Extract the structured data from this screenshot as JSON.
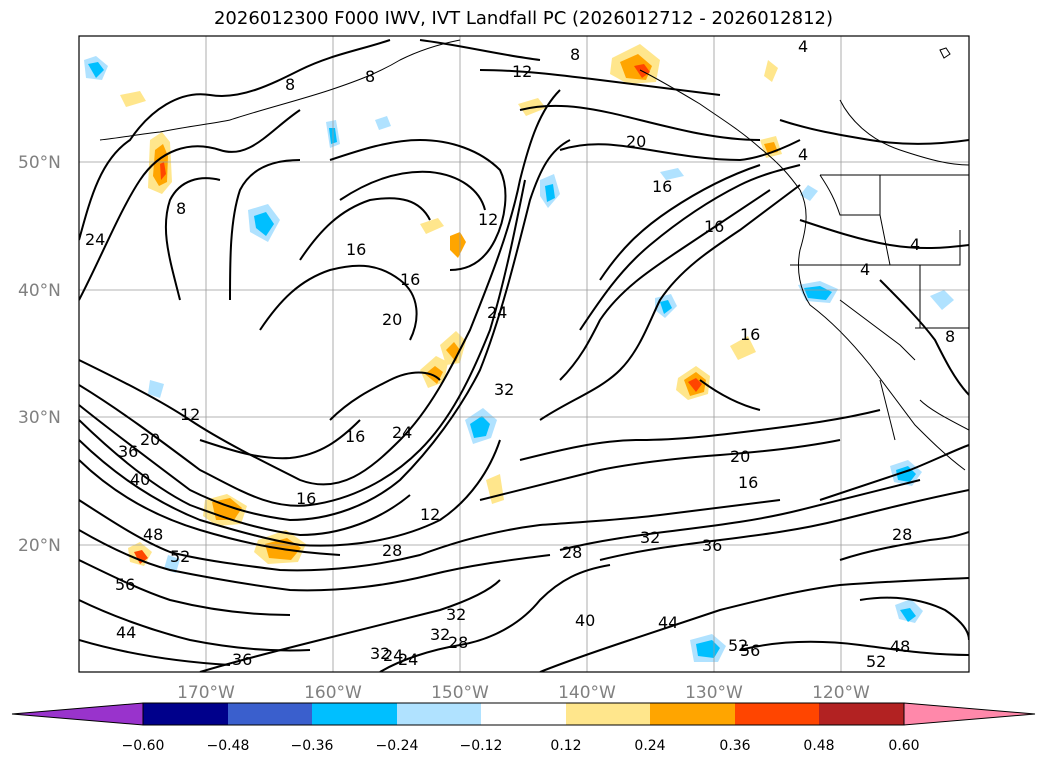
{
  "title": "2026012300 F000 IWV, IVT Landfall PC (2026012712 - 2026012812)",
  "lat_labels": [
    "50°N",
    "40°N",
    "30°N",
    "20°N"
  ],
  "lon_labels": [
    "170°W",
    "160°W",
    "150°W",
    "140°W",
    "130°W",
    "120°W"
  ],
  "colorbar": {
    "ticks": [
      "−0.60",
      "−0.48",
      "−0.36",
      "−0.24",
      "−0.12",
      "0.12",
      "0.24",
      "0.36",
      "0.48",
      "0.60"
    ],
    "colors": [
      "#9933cc",
      "#00008b",
      "#3a5fcd",
      "#00bfff",
      "#b0e2ff",
      "#ffffff",
      "#ffe68c",
      "#ffa500",
      "#ff4500",
      "#b22222",
      "#ff88aa"
    ]
  },
  "contour_labels": [
    "8",
    "8",
    "12",
    "8",
    "4",
    "4",
    "8",
    "24",
    "16",
    "12",
    "16",
    "20",
    "20",
    "16",
    "16",
    "4",
    "4",
    "8",
    "16",
    "24",
    "16",
    "24",
    "32",
    "12",
    "20",
    "36",
    "40",
    "16",
    "48",
    "52",
    "56",
    "44",
    "12",
    "28",
    "28",
    "32",
    "36",
    "20",
    "16",
    "28",
    "32",
    "40",
    "44",
    "48",
    "52",
    "56",
    "52",
    "36",
    "32",
    "24",
    "32",
    "28",
    "24"
  ]
}
